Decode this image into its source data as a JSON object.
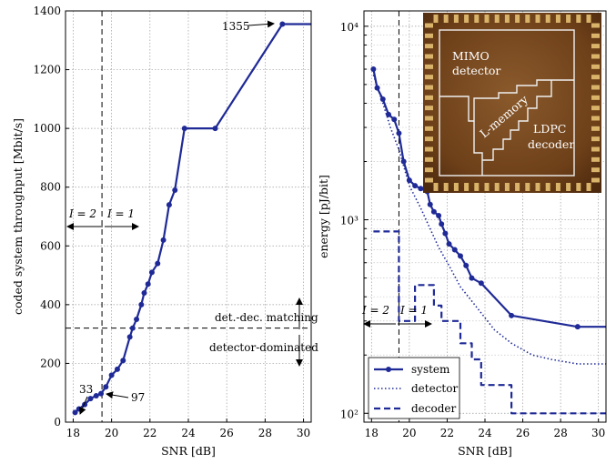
{
  "chart_data": [
    {
      "type": "line",
      "panel": "left",
      "xlabel": "SNR [dB]",
      "ylabel": "coded system throughput [Mbit/s]",
      "xlim": [
        17.6,
        30.4
      ],
      "ylim": [
        0,
        1400
      ],
      "xticks": [
        18,
        20,
        22,
        24,
        26,
        28,
        30
      ],
      "yticks": [
        0,
        200,
        400,
        600,
        800,
        1000,
        1200,
        1400
      ],
      "grid": true,
      "color": "#1f2a96",
      "series": [
        {
          "x": [
            18.1,
            18.3,
            18.6,
            18.9,
            19.2,
            19.45,
            19.7,
            20.0,
            20.3,
            20.6,
            20.95,
            21.1,
            21.3,
            21.55,
            21.7,
            21.9,
            22.1,
            22.4,
            22.7,
            23.0,
            23.3,
            23.8,
            25.4,
            28.9,
            30.4
          ],
          "y": [
            33,
            45,
            60,
            80,
            90,
            97,
            120,
            160,
            180,
            210,
            290,
            320,
            350,
            400,
            440,
            470,
            510,
            540,
            620,
            740,
            790,
            1000,
            1000,
            1355,
            1355
          ]
        }
      ],
      "annotations": [
        {
          "text": "1355",
          "x": 28.9,
          "y": 1355
        },
        {
          "text": "33",
          "x": 18.1,
          "y": 33
        },
        {
          "text": "97",
          "x": 19.45,
          "y": 97
        },
        {
          "text": "det.-dec. matching"
        },
        {
          "text": "detector-dominated"
        },
        {
          "text": "I = 2"
        },
        {
          "text": "I = 1"
        }
      ],
      "threshold_snr": 19.5,
      "threshold_throughput": 320
    },
    {
      "type": "line",
      "panel": "right",
      "xlabel": "SNR [dB]",
      "ylabel": "energy [pJ/bit]",
      "xlim": [
        17.6,
        30.4
      ],
      "ylim": [
        90,
        12000
      ],
      "yscale": "log",
      "xticks": [
        18,
        20,
        22,
        24,
        26,
        28,
        30
      ],
      "ytick_labels": [
        "10²",
        "10³",
        "10⁴"
      ],
      "grid": true,
      "legend_position": "bottom-left",
      "series": [
        {
          "name": "system",
          "style": "solid-marker",
          "x": [
            18.1,
            18.3,
            18.6,
            18.9,
            19.2,
            19.45,
            19.7,
            20.0,
            20.3,
            20.6,
            20.95,
            21.1,
            21.3,
            21.55,
            21.7,
            21.9,
            22.1,
            22.4,
            22.7,
            23.0,
            23.3,
            23.8,
            25.4,
            28.9,
            30.4
          ],
          "y": [
            6000,
            4800,
            4200,
            3500,
            3300,
            2800,
            2000,
            1600,
            1500,
            1450,
            1400,
            1200,
            1100,
            1050,
            950,
            850,
            750,
            700,
            650,
            580,
            500,
            470,
            320,
            280,
            280
          ]
        },
        {
          "name": "detector",
          "style": "dotted",
          "x": [
            18.1,
            18.6,
            19.0,
            19.45,
            20.0,
            20.6,
            21.1,
            21.55,
            22.1,
            22.7,
            23.3,
            23.8,
            24.5,
            25.4,
            26.5,
            27.5,
            28.9,
            30.4
          ],
          "y": [
            5600,
            4000,
            3000,
            2300,
            1500,
            1150,
            900,
            720,
            580,
            450,
            380,
            330,
            270,
            230,
            200,
            190,
            180,
            180
          ]
        },
        {
          "name": "decoder",
          "style": "dashed-step",
          "x": [
            18.1,
            19.45,
            19.45,
            20.3,
            20.3,
            21.3,
            21.3,
            21.7,
            21.7,
            22.7,
            22.7,
            23.3,
            23.3,
            23.8,
            23.8,
            25.4,
            25.4,
            30.4
          ],
          "y": [
            870,
            870,
            300,
            300,
            460,
            460,
            360,
            360,
            300,
            300,
            230,
            230,
            190,
            190,
            140,
            140,
            100,
            100
          ]
        }
      ],
      "annotations": [
        {
          "text": "I = 2"
        },
        {
          "text": "I = 1"
        }
      ],
      "inset_labels": [
        "MIMO",
        "detector",
        "L-memory",
        "LDPC",
        "decoder"
      ]
    }
  ],
  "colors": {
    "series": "#1f2a96",
    "chip_bg": "#7a4a22",
    "chip_outline": "#f0f0f0"
  }
}
